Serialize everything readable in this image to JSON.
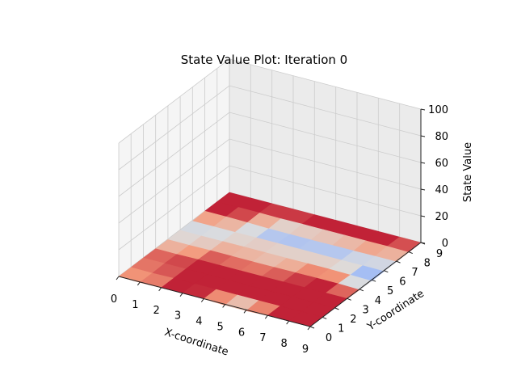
{
  "chart_data": {
    "type": "surface3d",
    "title": "State Value Plot: Iteration 0",
    "xlabel": "X-coordinate",
    "ylabel": "Y-coordinate",
    "zlabel": "State Value",
    "x_ticks": [
      "0",
      "1",
      "2",
      "3",
      "4",
      "5",
      "6",
      "7",
      "8",
      "9"
    ],
    "y_ticks": [
      "0",
      "1",
      "2",
      "3",
      "4",
      "5",
      "6",
      "7",
      "8",
      "9"
    ],
    "z_ticks": [
      "0",
      "20",
      "40",
      "60",
      "80",
      "100"
    ],
    "zlim": [
      0,
      100
    ],
    "colormap": "coolwarm",
    "grid": true,
    "color_range": [
      -1,
      0
    ],
    "values": [
      [
        -0.05,
        -0.3,
        -0.05,
        -0.05,
        -0.1,
        -0.7,
        -0.7,
        -0.05,
        -0.05,
        -0.05
      ],
      [
        -0.2,
        -0.4,
        -0.05,
        -0.05,
        -0.05,
        -0.05,
        -0.05,
        -0.05,
        -0.05,
        -0.05
      ],
      [
        -0.1,
        -0.05,
        -0.05,
        -0.05,
        -0.05,
        -0.05,
        -0.05,
        -0.05,
        -0.05,
        -0.05
      ],
      [
        -0.2,
        -0.3,
        -0.05,
        -0.05,
        -0.05,
        -0.05,
        -0.05,
        -0.05,
        -0.05,
        -0.05
      ],
      [
        -0.4,
        -0.45,
        -0.25,
        -0.25,
        -0.35,
        -0.3,
        -0.2,
        -0.05,
        -0.05,
        -0.5
      ],
      [
        -0.5,
        -0.55,
        -0.45,
        -0.4,
        -0.4,
        -0.45,
        -0.35,
        -0.3,
        -0.55,
        -0.95
      ],
      [
        -0.55,
        -0.5,
        -0.55,
        -0.45,
        -0.5,
        -0.45,
        -0.55,
        -0.6,
        -0.5,
        -0.7
      ],
      [
        -0.05,
        -0.05,
        -0.3,
        -0.75,
        -0.8,
        -0.8,
        -0.7,
        -0.65,
        -0.45,
        -0.5
      ],
      [
        -0.05,
        -0.05,
        -0.05,
        -0.2,
        -0.05,
        -0.05,
        -0.05,
        -0.05,
        -0.05,
        -0.35
      ],
      [
        -0.05,
        -0.05,
        -0.05,
        -0.05,
        -0.05,
        -0.05,
        -0.05,
        -0.05,
        -0.05,
        -0.05
      ]
    ]
  }
}
